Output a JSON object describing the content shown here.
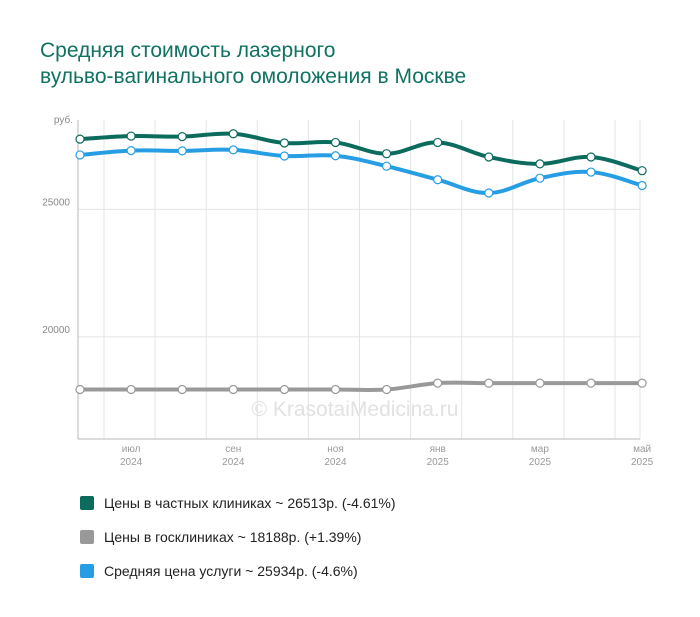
{
  "title": {
    "line1": "Средняя стоимость лазерного",
    "line2": "вульво-вагинального омоложения в Москве"
  },
  "watermark": "© KrasotaiMedicina.ru",
  "legend": [
    {
      "label": "Цены в частных клиниках ~ 26513р. (-4.61%)",
      "color": "#0b6b5c"
    },
    {
      "label": "Цены в госклиниках ~ 18188р. (+1.39%)",
      "color": "#999999"
    },
    {
      "label": "Средняя цена услуги ~ 25934р. (-4.6%)",
      "color": "#279ee4"
    }
  ],
  "chart_data": {
    "type": "line",
    "y_unit": "руб.",
    "ylim": [
      16000,
      28500
    ],
    "y_ticks": [
      20000,
      25000
    ],
    "grid": "vertical and horizontal",
    "x_labels": [
      {
        "index": 1,
        "month": "июл",
        "year": "2024"
      },
      {
        "index": 3,
        "month": "сен",
        "year": "2024"
      },
      {
        "index": 5,
        "month": "ноя",
        "year": "2024"
      },
      {
        "index": 7,
        "month": "янв",
        "year": "2025"
      },
      {
        "index": 9,
        "month": "мар",
        "year": "2025"
      },
      {
        "index": 11,
        "month": "май",
        "year": "2025"
      }
    ],
    "series": [
      {
        "name": "Цены в частных клиниках",
        "color": "#0b6b5c",
        "values": [
          27750,
          27870,
          27850,
          27960,
          27600,
          27620,
          27180,
          27620,
          27050,
          26780,
          27050,
          26513
        ]
      },
      {
        "name": "Средняя цена услуги",
        "color": "#279ee4",
        "values": [
          27130,
          27300,
          27290,
          27330,
          27090,
          27100,
          26690,
          26160,
          25640,
          26220,
          26460,
          25934
        ]
      },
      {
        "name": "Цены в госклиниках",
        "color": "#999999",
        "values": [
          17940,
          17940,
          17940,
          17940,
          17940,
          17940,
          17940,
          18190,
          18188,
          18188,
          18188,
          18188
        ]
      }
    ]
  }
}
